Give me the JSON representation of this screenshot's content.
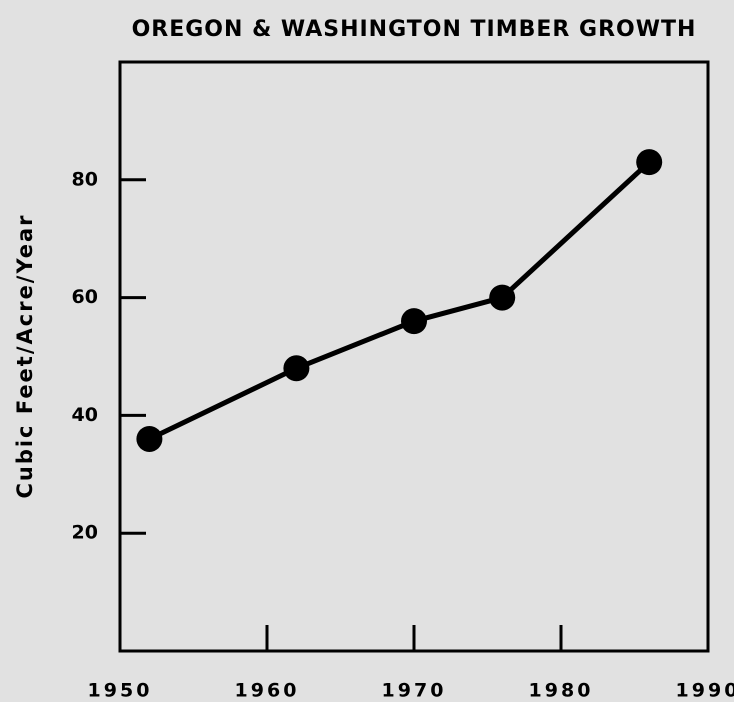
{
  "chart_data": {
    "type": "line",
    "title": "OREGON & WASHINGTON TIMBER GROWTH",
    "y_label": "Cubic Feet/Acre/Year",
    "x": [
      1952,
      1962,
      1970,
      1976,
      1986
    ],
    "series": [
      {
        "name": "Timber growth",
        "color": "#000000",
        "values": [
          36,
          48,
          56,
          60,
          83
        ]
      }
    ],
    "xlim": [
      1950,
      1990
    ],
    "xticks": [
      1950,
      1960,
      1970,
      1980,
      1990
    ],
    "ylim": [
      0,
      100
    ],
    "yticks": [
      20,
      40,
      60,
      80
    ],
    "grid": false
  }
}
